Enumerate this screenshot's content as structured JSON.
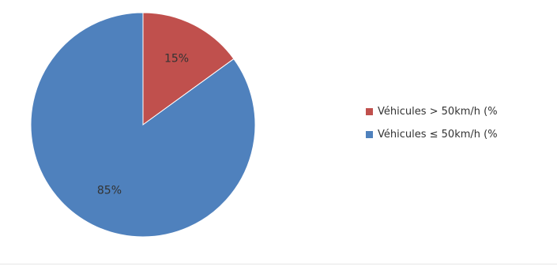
{
  "chart_data": {
    "type": "pie",
    "slices": [
      {
        "label": "Véhicules > 50km/h (%",
        "value": 15,
        "data_label": "15%",
        "color": "#c0504d"
      },
      {
        "label": "Véhicules ≤ 50km/h (%",
        "value": 85,
        "data_label": "85%",
        "color": "#4f81bd"
      }
    ],
    "legend_position": "right",
    "start_angle_deg": 0,
    "direction": "clockwise"
  }
}
